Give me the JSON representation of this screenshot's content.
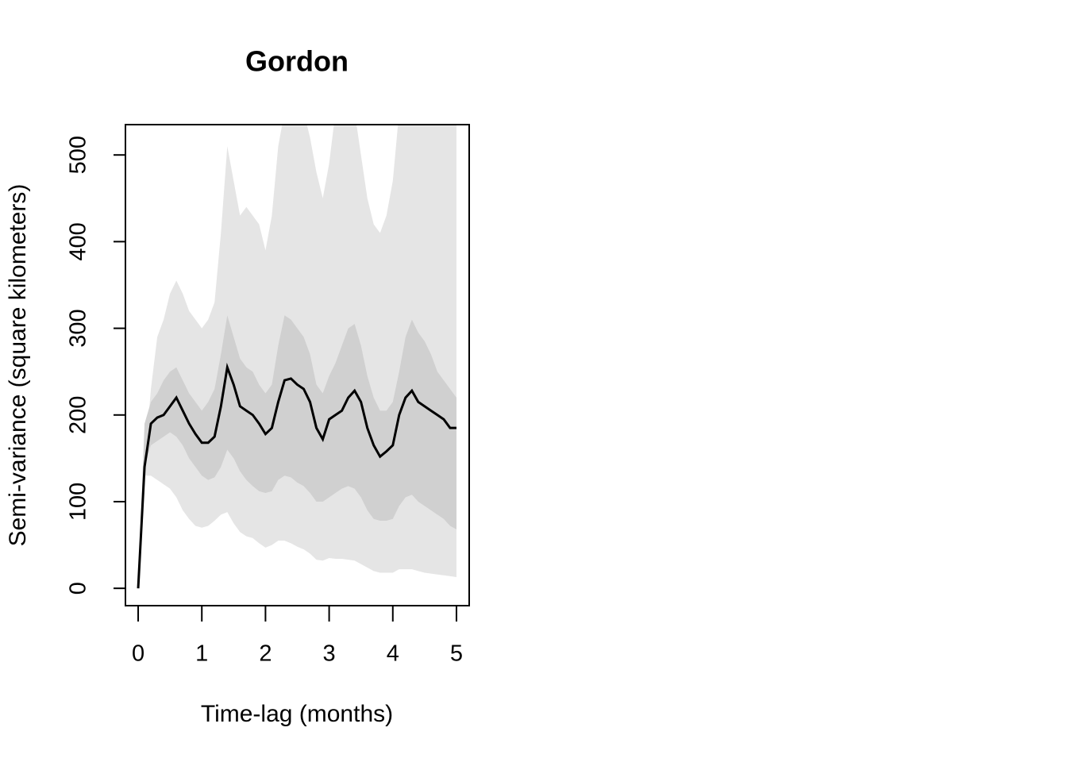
{
  "chart_data": {
    "type": "band-line",
    "title": "Gordon",
    "x_label": "Time-lag (months)",
    "y_label": "Semi-variance (square kilometers)",
    "x": [
      0,
      0.1,
      0.2,
      0.3,
      0.4,
      0.5,
      0.6,
      0.7,
      0.8,
      0.9,
      1.0,
      1.1,
      1.2,
      1.3,
      1.4,
      1.5,
      1.6,
      1.7,
      1.8,
      1.9,
      2.0,
      2.1,
      2.2,
      2.3,
      2.4,
      2.5,
      2.6,
      2.7,
      2.8,
      2.9,
      3.0,
      3.1,
      3.2,
      3.3,
      3.4,
      3.5,
      3.6,
      3.7,
      3.8,
      3.9,
      4.0,
      4.1,
      4.2,
      4.3,
      4.4,
      4.5,
      4.6,
      4.7,
      4.8,
      4.9,
      5.0
    ],
    "values": [
      0,
      140,
      190,
      197,
      200,
      210,
      220,
      205,
      190,
      178,
      168,
      168,
      175,
      210,
      255,
      235,
      210,
      205,
      200,
      190,
      178,
      185,
      215,
      240,
      242,
      235,
      230,
      215,
      185,
      172,
      195,
      200,
      205,
      220,
      228,
      215,
      185,
      165,
      152,
      158,
      165,
      200,
      220,
      228,
      215,
      210,
      205,
      200,
      195,
      185,
      185
    ],
    "color": "#000000",
    "bands": [
      {
        "color": "#e5e5e5",
        "upper": [
          0,
          140,
          230,
          290,
          310,
          340,
          355,
          340,
          320,
          310,
          300,
          310,
          330,
          410,
          510,
          470,
          430,
          440,
          430,
          420,
          390,
          430,
          510,
          550,
          550,
          550,
          550,
          520,
          480,
          450,
          490,
          550,
          550,
          550,
          550,
          500,
          450,
          420,
          410,
          430,
          470,
          550,
          550,
          550,
          550,
          550,
          550,
          550,
          550,
          550,
          550
        ],
        "lower": [
          0,
          130,
          130,
          125,
          120,
          115,
          105,
          90,
          80,
          72,
          70,
          72,
          78,
          85,
          88,
          75,
          65,
          60,
          58,
          52,
          47,
          50,
          55,
          55,
          52,
          48,
          45,
          40,
          33,
          32,
          35,
          34,
          34,
          33,
          32,
          28,
          24,
          20,
          18,
          18,
          18,
          22,
          22,
          22,
          20,
          18,
          17,
          16,
          15,
          14,
          13
        ]
      },
      {
        "color": "#d0d0d0",
        "upper": [
          0,
          190,
          215,
          225,
          240,
          250,
          255,
          240,
          225,
          215,
          205,
          215,
          230,
          270,
          315,
          290,
          265,
          255,
          250,
          235,
          225,
          235,
          280,
          315,
          310,
          300,
          290,
          270,
          235,
          225,
          245,
          260,
          280,
          300,
          305,
          280,
          245,
          220,
          205,
          205,
          215,
          250,
          290,
          310,
          295,
          285,
          270,
          250,
          240,
          230,
          220
        ],
        "lower": [
          0,
          140,
          165,
          170,
          175,
          180,
          175,
          165,
          150,
          140,
          130,
          125,
          128,
          140,
          160,
          150,
          135,
          125,
          118,
          112,
          110,
          112,
          125,
          130,
          128,
          122,
          118,
          110,
          100,
          100,
          105,
          110,
          115,
          118,
          115,
          105,
          90,
          80,
          78,
          78,
          80,
          95,
          105,
          108,
          100,
          95,
          90,
          85,
          80,
          72,
          68
        ]
      }
    ],
    "xlim": [
      -0.2,
      5.2
    ],
    "ylim": [
      -20,
      535
    ],
    "xticks": [
      0,
      1,
      2,
      3,
      4,
      5
    ],
    "yticks": [
      0,
      100,
      200,
      300,
      400,
      500
    ]
  }
}
